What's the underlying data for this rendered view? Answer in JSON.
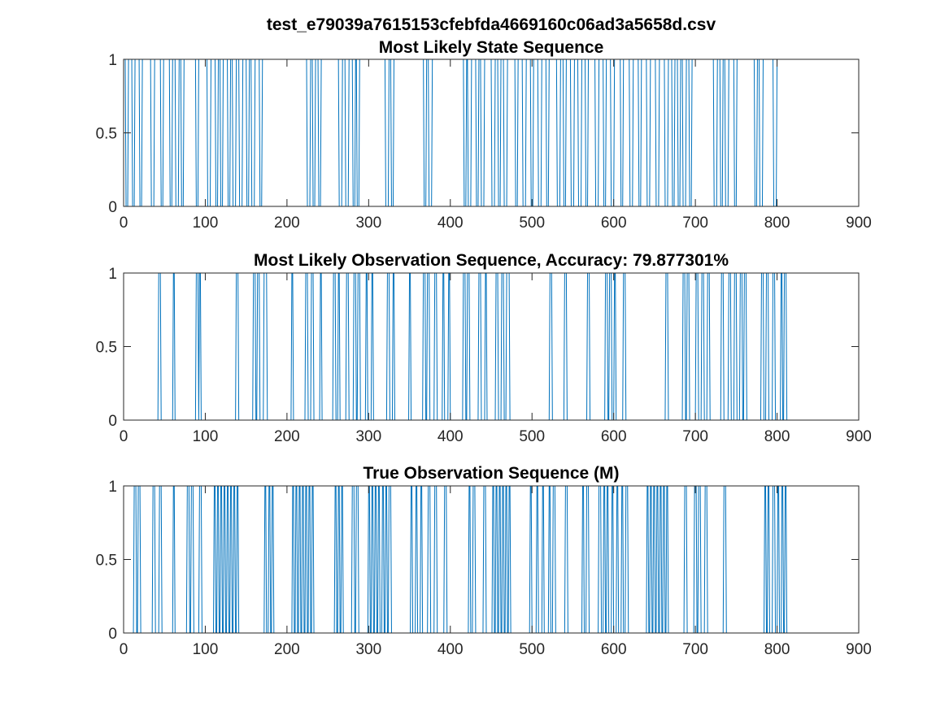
{
  "figure": {
    "supertitle": "test_e79039a7615153cfebfda4669160c06ad3a5658d.csv"
  },
  "colors": {
    "series": "#0072BD",
    "axes": "#262626",
    "background": "#ffffff"
  },
  "chart_data": [
    {
      "type": "line",
      "title": "Most Likely State Sequence",
      "xlabel": "",
      "ylabel": "",
      "xlim": [
        0,
        900
      ],
      "ylim": [
        0,
        1
      ],
      "xticks": [
        0,
        100,
        200,
        300,
        400,
        500,
        600,
        700,
        800,
        900
      ],
      "yticks": [
        0,
        0.5,
        1
      ],
      "xtick_labels": [
        "0",
        "100",
        "200",
        "300",
        "400",
        "500",
        "600",
        "700",
        "800",
        "900"
      ],
      "ytick_labels": [
        "0",
        "0.5",
        "1"
      ],
      "grid": false,
      "n_points": 815,
      "low_intervals": [
        [
          2,
          5
        ],
        [
          10,
          13
        ],
        [
          19,
          22
        ],
        [
          33,
          37
        ],
        [
          45,
          48
        ],
        [
          56,
          59
        ],
        [
          63,
          67
        ],
        [
          70,
          73
        ],
        [
          88,
          91
        ],
        [
          102,
          106
        ],
        [
          112,
          115
        ],
        [
          118,
          121
        ],
        [
          127,
          130
        ],
        [
          133,
          137
        ],
        [
          141,
          145
        ],
        [
          150,
          153
        ],
        [
          156,
          160
        ],
        [
          166,
          169
        ],
        [
          224,
          228
        ],
        [
          231,
          234
        ],
        [
          238,
          241
        ],
        [
          263,
          267
        ],
        [
          271,
          275
        ],
        [
          280,
          283
        ],
        [
          285,
          288
        ],
        [
          320,
          324
        ],
        [
          327,
          330
        ],
        [
          367,
          370
        ],
        [
          373,
          377
        ],
        [
          416,
          419
        ],
        [
          421,
          425
        ],
        [
          431,
          434
        ],
        [
          437,
          441
        ],
        [
          450,
          454
        ],
        [
          458,
          461
        ],
        [
          465,
          469
        ],
        [
          479,
          482
        ],
        [
          488,
          492
        ],
        [
          498,
          501
        ],
        [
          507,
          511
        ],
        [
          517,
          520
        ],
        [
          530,
          534
        ],
        [
          538,
          541
        ],
        [
          547,
          551
        ],
        [
          556,
          560
        ],
        [
          565,
          568
        ],
        [
          577,
          581
        ],
        [
          587,
          590
        ],
        [
          596,
          600
        ],
        [
          608,
          611
        ],
        [
          619,
          623
        ],
        [
          630,
          633
        ],
        [
          640,
          644
        ],
        [
          651,
          655
        ],
        [
          662,
          666
        ],
        [
          671,
          674
        ],
        [
          678,
          681
        ],
        [
          684,
          688
        ],
        [
          692,
          695
        ],
        [
          722,
          726
        ],
        [
          730,
          733
        ],
        [
          736,
          740
        ],
        [
          747,
          750
        ],
        [
          772,
          775
        ],
        [
          778,
          782
        ],
        [
          795,
          799
        ]
      ],
      "default_value": 1
    },
    {
      "type": "line",
      "title": "Most Likely Observation Sequence, Accuracy: 79.877301%",
      "xlabel": "",
      "ylabel": "",
      "xlim": [
        0,
        900
      ],
      "ylim": [
        0,
        1
      ],
      "xticks": [
        0,
        100,
        200,
        300,
        400,
        500,
        600,
        700,
        800,
        900
      ],
      "yticks": [
        0,
        0.5,
        1
      ],
      "xtick_labels": [
        "0",
        "100",
        "200",
        "300",
        "400",
        "500",
        "600",
        "700",
        "800",
        "900"
      ],
      "ytick_labels": [
        "0",
        "0.5",
        "1"
      ],
      "grid": false,
      "n_points": 815,
      "high_intervals": [
        [
          42,
          45
        ],
        [
          60,
          62
        ],
        [
          88,
          91
        ],
        [
          92,
          94
        ],
        [
          137,
          140
        ],
        [
          158,
          161
        ],
        [
          163,
          166
        ],
        [
          171,
          175
        ],
        [
          205,
          207
        ],
        [
          222,
          225
        ],
        [
          229,
          232
        ],
        [
          240,
          242
        ],
        [
          256,
          259
        ],
        [
          262,
          264
        ],
        [
          272,
          275
        ],
        [
          281,
          284
        ],
        [
          286,
          289
        ],
        [
          296,
          298
        ],
        [
          303,
          305
        ],
        [
          322,
          325
        ],
        [
          329,
          331
        ],
        [
          349,
          351
        ],
        [
          366,
          369
        ],
        [
          371,
          374
        ],
        [
          380,
          383
        ],
        [
          390,
          392
        ],
        [
          397,
          399
        ],
        [
          415,
          418
        ],
        [
          420,
          423
        ],
        [
          434,
          437
        ],
        [
          442,
          444
        ],
        [
          455,
          458
        ],
        [
          462,
          465
        ],
        [
          468,
          472
        ],
        [
          521,
          524
        ],
        [
          539,
          542
        ],
        [
          567,
          570
        ],
        [
          589,
          592
        ],
        [
          594,
          597
        ],
        [
          600,
          602
        ],
        [
          611,
          614
        ],
        [
          663,
          666
        ],
        [
          684,
          687
        ],
        [
          689,
          692
        ],
        [
          700,
          703
        ],
        [
          707,
          710
        ],
        [
          714,
          717
        ],
        [
          731,
          734
        ],
        [
          740,
          743
        ],
        [
          747,
          750
        ],
        [
          754,
          757
        ],
        [
          759,
          762
        ],
        [
          780,
          783
        ],
        [
          786,
          789
        ],
        [
          794,
          797
        ],
        [
          804,
          806
        ],
        [
          808,
          811
        ]
      ],
      "default_value": 0
    },
    {
      "type": "line",
      "title": "True Observation Sequence (M)",
      "xlabel": "",
      "ylabel": "",
      "xlim": [
        0,
        900
      ],
      "ylim": [
        0,
        1
      ],
      "xticks": [
        0,
        100,
        200,
        300,
        400,
        500,
        600,
        700,
        800,
        900
      ],
      "yticks": [
        0,
        0.5,
        1
      ],
      "xtick_labels": [
        "0",
        "100",
        "200",
        "300",
        "400",
        "500",
        "600",
        "700",
        "800",
        "900"
      ],
      "ytick_labels": [
        "0",
        "0.5",
        "1"
      ],
      "grid": false,
      "n_points": 815,
      "high_intervals": [
        [
          12,
          15
        ],
        [
          17,
          20
        ],
        [
          35,
          38
        ],
        [
          43,
          46
        ],
        [
          60,
          62
        ],
        [
          77,
          80
        ],
        [
          82,
          85
        ],
        [
          92,
          95
        ],
        [
          110,
          112
        ],
        [
          114,
          116
        ],
        [
          118,
          120
        ],
        [
          122,
          124
        ],
        [
          126,
          128
        ],
        [
          130,
          132
        ],
        [
          134,
          136
        ],
        [
          138,
          140
        ],
        [
          172,
          174
        ],
        [
          177,
          179
        ],
        [
          181,
          183
        ],
        [
          206,
          208
        ],
        [
          210,
          212
        ],
        [
          214,
          216
        ],
        [
          218,
          220
        ],
        [
          222,
          224
        ],
        [
          226,
          228
        ],
        [
          230,
          232
        ],
        [
          258,
          260
        ],
        [
          262,
          264
        ],
        [
          266,
          268
        ],
        [
          279,
          282
        ],
        [
          284,
          287
        ],
        [
          299,
          301
        ],
        [
          303,
          305
        ],
        [
          307,
          309
        ],
        [
          311,
          313
        ],
        [
          316,
          318
        ],
        [
          320,
          322
        ],
        [
          324,
          327
        ],
        [
          351,
          353
        ],
        [
          357,
          359
        ],
        [
          363,
          365
        ],
        [
          372,
          375
        ],
        [
          380,
          383
        ],
        [
          392,
          395
        ],
        [
          422,
          424
        ],
        [
          427,
          430
        ],
        [
          440,
          443
        ],
        [
          451,
          453
        ],
        [
          455,
          457
        ],
        [
          459,
          461
        ],
        [
          463,
          465
        ],
        [
          467,
          469
        ],
        [
          471,
          473
        ],
        [
          497,
          499
        ],
        [
          505,
          507
        ],
        [
          512,
          514
        ],
        [
          520,
          522
        ],
        [
          525,
          528
        ],
        [
          540,
          543
        ],
        [
          561,
          563
        ],
        [
          566,
          569
        ],
        [
          581,
          584
        ],
        [
          587,
          589
        ],
        [
          591,
          593
        ],
        [
          597,
          599
        ],
        [
          603,
          605
        ],
        [
          609,
          611
        ],
        [
          614,
          617
        ],
        [
          640,
          642
        ],
        [
          644,
          646
        ],
        [
          648,
          650
        ],
        [
          652,
          654
        ],
        [
          656,
          658
        ],
        [
          660,
          662
        ],
        [
          664,
          666
        ],
        [
          686,
          689
        ],
        [
          698,
          701
        ],
        [
          703,
          706
        ],
        [
          711,
          714
        ],
        [
          734,
          737
        ],
        [
          784,
          786
        ],
        [
          788,
          790
        ],
        [
          794,
          797
        ],
        [
          800,
          802
        ],
        [
          805,
          807
        ],
        [
          809,
          811
        ]
      ],
      "default_value": 0
    }
  ]
}
